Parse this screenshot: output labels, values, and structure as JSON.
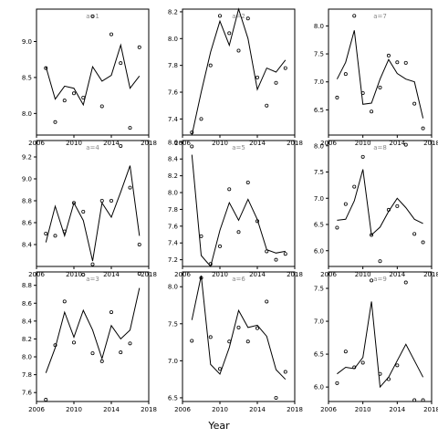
{
  "chart_data": [
    {
      "type": "line",
      "panel_label": "a=1",
      "x": [
        2007,
        2008,
        2009,
        2010,
        2011,
        2012,
        2013,
        2014,
        2015,
        2016,
        2017
      ],
      "line": [
        8.65,
        8.2,
        8.38,
        8.35,
        8.12,
        8.65,
        8.45,
        8.53,
        8.95,
        8.35,
        8.52
      ],
      "points": [
        8.63,
        7.88,
        8.18,
        8.28,
        8.22,
        9.35,
        8.1,
        9.1,
        8.7,
        7.8,
        8.92
      ],
      "ylim": [
        7.7,
        9.45
      ],
      "yticks": [
        "8.0",
        "8.5",
        "9.0"
      ],
      "yticks_v": [
        8.0,
        8.5,
        9.0
      ],
      "xticks": [
        "2006",
        "2010",
        "2014",
        "2018"
      ]
    },
    {
      "type": "line",
      "panel_label": "a=2",
      "x": [
        2007,
        2008,
        2009,
        2010,
        2011,
        2012,
        2013,
        2014,
        2015,
        2016,
        2017
      ],
      "line": [
        7.28,
        7.6,
        7.9,
        8.13,
        7.95,
        8.22,
        8.0,
        7.62,
        7.78,
        7.75,
        7.84
      ],
      "points": [
        7.3,
        7.4,
        7.8,
        8.17,
        8.04,
        7.91,
        8.15,
        7.71,
        7.5,
        7.67,
        7.78
      ],
      "ylim": [
        7.28,
        8.22
      ],
      "yticks": [
        "7.4",
        "7.6",
        "7.8",
        "8.0",
        "8.2"
      ],
      "yticks_v": [
        7.4,
        7.6,
        7.8,
        8.0,
        8.2
      ],
      "xticks": [
        "2006",
        "2010",
        "2014",
        "2018"
      ]
    },
    {
      "type": "line",
      "panel_label": "a=7",
      "x": [
        2007,
        2008,
        2009,
        2010,
        2011,
        2012,
        2013,
        2014,
        2015,
        2016,
        2017
      ],
      "line": [
        7.05,
        7.35,
        7.92,
        6.6,
        6.62,
        7.05,
        7.4,
        7.15,
        7.05,
        7.0,
        6.35
      ],
      "points": [
        6.72,
        7.14,
        8.18,
        6.8,
        6.47,
        6.9,
        7.47,
        7.35,
        7.34,
        6.61,
        6.17
      ],
      "ylim": [
        6.05,
        8.3
      ],
      "yticks": [
        "6.5",
        "7.0",
        "7.5",
        "8.0"
      ],
      "yticks_v": [
        6.5,
        7.0,
        7.5,
        8.0
      ],
      "xticks": [
        "2006",
        "2010",
        "2014",
        "2018"
      ]
    },
    {
      "type": "line",
      "panel_label": "a=4",
      "x": [
        2007,
        2008,
        2009,
        2010,
        2011,
        2012,
        2013,
        2014,
        2015,
        2016,
        2017
      ],
      "line": [
        8.42,
        8.75,
        8.48,
        8.78,
        8.62,
        8.25,
        8.78,
        8.65,
        8.88,
        9.12,
        8.48
      ],
      "points": [
        8.5,
        8.48,
        8.52,
        8.78,
        8.7,
        8.22,
        8.8,
        8.8,
        9.3,
        8.92,
        8.4
      ],
      "ylim": [
        8.2,
        9.35
      ],
      "yticks": [
        "8.4",
        "8.6",
        "8.8",
        "9.0",
        "9.2"
      ],
      "yticks_v": [
        8.4,
        8.6,
        8.8,
        9.0,
        9.2
      ],
      "xticks": [
        "2006",
        "2010",
        "2014",
        "2018"
      ]
    },
    {
      "type": "line",
      "panel_label": "a=5",
      "x": [
        2007,
        2008,
        2009,
        2010,
        2011,
        2012,
        2013,
        2014,
        2015,
        2016,
        2017
      ],
      "line": [
        8.45,
        7.25,
        7.12,
        7.55,
        7.88,
        7.67,
        7.92,
        7.68,
        7.32,
        7.28,
        7.3
      ],
      "points": [
        8.55,
        7.48,
        7.15,
        7.36,
        8.04,
        7.53,
        8.12,
        7.66,
        7.3,
        7.2,
        7.27
      ],
      "ylim": [
        7.12,
        8.62
      ],
      "yticks": [
        "7.2",
        "7.4",
        "7.6",
        "7.8",
        "8.0",
        "8.2",
        "8.4",
        "8.6"
      ],
      "yticks_v": [
        7.2,
        7.4,
        7.6,
        7.8,
        8.0,
        8.2,
        8.4,
        8.6
      ],
      "xticks": [
        "2006",
        "2010",
        "2014",
        "2018"
      ]
    },
    {
      "type": "line",
      "panel_label": "a=8",
      "x": [
        2007,
        2008,
        2009,
        2010,
        2011,
        2012,
        2013,
        2014,
        2015,
        2016,
        2017
      ],
      "line": [
        6.58,
        6.6,
        6.95,
        7.55,
        6.3,
        6.45,
        6.75,
        7.0,
        6.82,
        6.6,
        6.52
      ],
      "points": [
        6.44,
        6.89,
        7.22,
        7.79,
        6.3,
        5.8,
        6.78,
        6.85,
        8.02,
        6.32,
        6.16
      ],
      "ylim": [
        5.7,
        8.1
      ],
      "yticks": [
        "6.0",
        "6.5",
        "7.0",
        "7.5",
        "8.0"
      ],
      "yticks_v": [
        6.0,
        6.5,
        7.0,
        7.5,
        8.0
      ],
      "xticks": [
        "2006",
        "2010",
        "2014",
        "2018"
      ]
    },
    {
      "type": "line",
      "panel_label": "a=3",
      "x": [
        2007,
        2008,
        2009,
        2010,
        2011,
        2012,
        2013,
        2014,
        2015,
        2016,
        2017
      ],
      "line": [
        7.82,
        8.1,
        8.5,
        8.22,
        8.52,
        8.3,
        7.98,
        8.35,
        8.2,
        8.3,
        8.77
      ],
      "points": [
        7.52,
        8.13,
        8.62,
        8.16,
        8.92,
        8.04,
        7.95,
        8.5,
        8.05,
        8.15,
        8.93
      ],
      "ylim": [
        7.5,
        8.95
      ],
      "yticks": [
        "7.6",
        "7.8",
        "8.0",
        "8.2",
        "8.4",
        "8.6",
        "8.8"
      ],
      "yticks_v": [
        7.6,
        7.8,
        8.0,
        8.2,
        8.4,
        8.6,
        8.8
      ],
      "xticks": [
        "2006",
        "2010",
        "2014",
        "2018"
      ]
    },
    {
      "type": "line",
      "panel_label": "a=6",
      "x": [
        2007,
        2008,
        2009,
        2010,
        2011,
        2012,
        2013,
        2014,
        2015,
        2016,
        2017
      ],
      "line": [
        7.55,
        8.15,
        6.95,
        6.82,
        7.18,
        7.68,
        7.45,
        7.48,
        7.33,
        6.88,
        6.75
      ],
      "points": [
        7.27,
        8.12,
        7.32,
        6.89,
        7.26,
        7.45,
        7.26,
        7.44,
        7.8,
        6.5,
        6.85
      ],
      "ylim": [
        6.45,
        8.2
      ],
      "yticks": [
        "6.5",
        "7.0",
        "7.5",
        "8.0"
      ],
      "yticks_v": [
        6.5,
        7.0,
        7.5,
        8.0
      ],
      "xticks": [
        "2006",
        "2010",
        "2014",
        "2018"
      ]
    },
    {
      "type": "line",
      "panel_label": "a=9",
      "x": [
        2007,
        2008,
        2009,
        2010,
        2011,
        2012,
        2013,
        2014,
        2015,
        2016,
        2017
      ],
      "line": [
        6.2,
        6.3,
        6.28,
        6.45,
        7.3,
        6.0,
        6.15,
        6.4,
        6.65,
        6.4,
        6.15
      ],
      "points": [
        6.06,
        6.54,
        6.3,
        6.37,
        7.62,
        6.2,
        6.12,
        6.33,
        7.59,
        5.8,
        5.8
      ],
      "ylim": [
        5.78,
        7.75
      ],
      "yticks": [
        "6.0",
        "6.5",
        "7.0",
        "7.5"
      ],
      "yticks_v": [
        6.0,
        6.5,
        7.0,
        7.5
      ],
      "xticks": [
        "2006",
        "2010",
        "2014",
        "2018"
      ]
    }
  ],
  "xlabel": "Year",
  "x_range": [
    2006,
    2018
  ]
}
